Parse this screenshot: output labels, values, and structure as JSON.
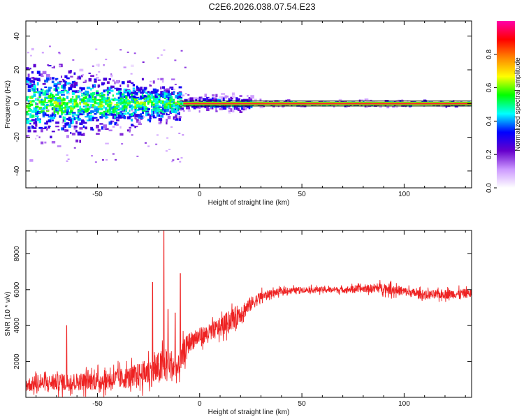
{
  "title": "C2E6.2026.038.07.54.E23",
  "colors": {
    "snr_line": "#ee2222",
    "ridge": "#ff2a2a",
    "background": "#ffffff",
    "axis": "#000000"
  },
  "chart_data": [
    {
      "type": "heatmap",
      "title": "",
      "xlabel": "Height of straight line (km)",
      "ylabel": "Frequency (Hz)",
      "xlim": [
        -85,
        133
      ],
      "ylim": [
        -50,
        49
      ],
      "x_ticks": [
        -50,
        0,
        50,
        100
      ],
      "y_ticks": [
        -40,
        -20,
        0,
        20,
        40
      ],
      "x_tick_labels": [
        "-50",
        "0",
        "50",
        "100"
      ],
      "y_tick_labels": [
        "-40",
        "-20",
        "0",
        "20",
        "40"
      ],
      "ridge_frequency_hz": 0,
      "reference_lines_hz": [
        1.5,
        -1.5
      ],
      "colorbar": {
        "label": "Normalized spectral amplitude",
        "range": [
          0.0,
          1.0
        ],
        "ticks": [
          0.0,
          0.2,
          0.4,
          0.6,
          0.8
        ],
        "tick_labels": [
          "0.0",
          "0.2",
          "0.4",
          "0.6",
          "0.8"
        ],
        "colormap": [
          "#ffffff",
          "#cc99ff",
          "#6600cc",
          "#0000ff",
          "#00ffff",
          "#00ff00",
          "#ffff00",
          "#ff8800",
          "#ff0000",
          "#ff00aa"
        ]
      }
    },
    {
      "type": "line",
      "title": "",
      "xlabel": "Height of straight line (km)",
      "ylabel": "SNR (10 * v/v)",
      "xlim": [
        -85,
        133
      ],
      "ylim": [
        0,
        9300
      ],
      "x_ticks": [
        -50,
        0,
        50,
        100
      ],
      "y_ticks": [
        2000,
        4000,
        6000,
        8000
      ],
      "x_tick_labels": [
        "-50",
        "0",
        "50",
        "100"
      ],
      "y_tick_labels": [
        "2000",
        "4000",
        "6000",
        "8000"
      ],
      "series": [
        {
          "name": "SNR",
          "x": [
            -85,
            -75,
            -65,
            -55,
            -45,
            -35,
            -28,
            -22,
            -18,
            -14,
            -10,
            -8,
            -5,
            0,
            5,
            10,
            15,
            20,
            25,
            30,
            35,
            40,
            50,
            60,
            70,
            80,
            90,
            95,
            100,
            110,
            120,
            133
          ],
          "values": [
            700,
            800,
            850,
            900,
            950,
            1100,
            1300,
            1500,
            1700,
            1800,
            1500,
            2500,
            3100,
            3400,
            3600,
            3900,
            4300,
            4700,
            5200,
            5600,
            5800,
            5900,
            6000,
            6000,
            6000,
            6050,
            6100,
            6000,
            5900,
            5700,
            5750,
            5800
          ],
          "noise_amplitude": [
            400,
            450,
            500,
            500,
            550,
            600,
            700,
            900,
            1000,
            900,
            800,
            700,
            550,
            500,
            500,
            550,
            600,
            550,
            400,
            300,
            200,
            180,
            160,
            160,
            170,
            200,
            280,
            300,
            250,
            250,
            260,
            260
          ],
          "peaks": [
            [
              -17.5,
              9300
            ],
            [
              -9.5,
              6900
            ],
            [
              -23,
              6400
            ],
            [
              -15.5,
              4900
            ],
            [
              -65,
              4000
            ],
            [
              -12,
              4700
            ]
          ]
        }
      ]
    }
  ]
}
